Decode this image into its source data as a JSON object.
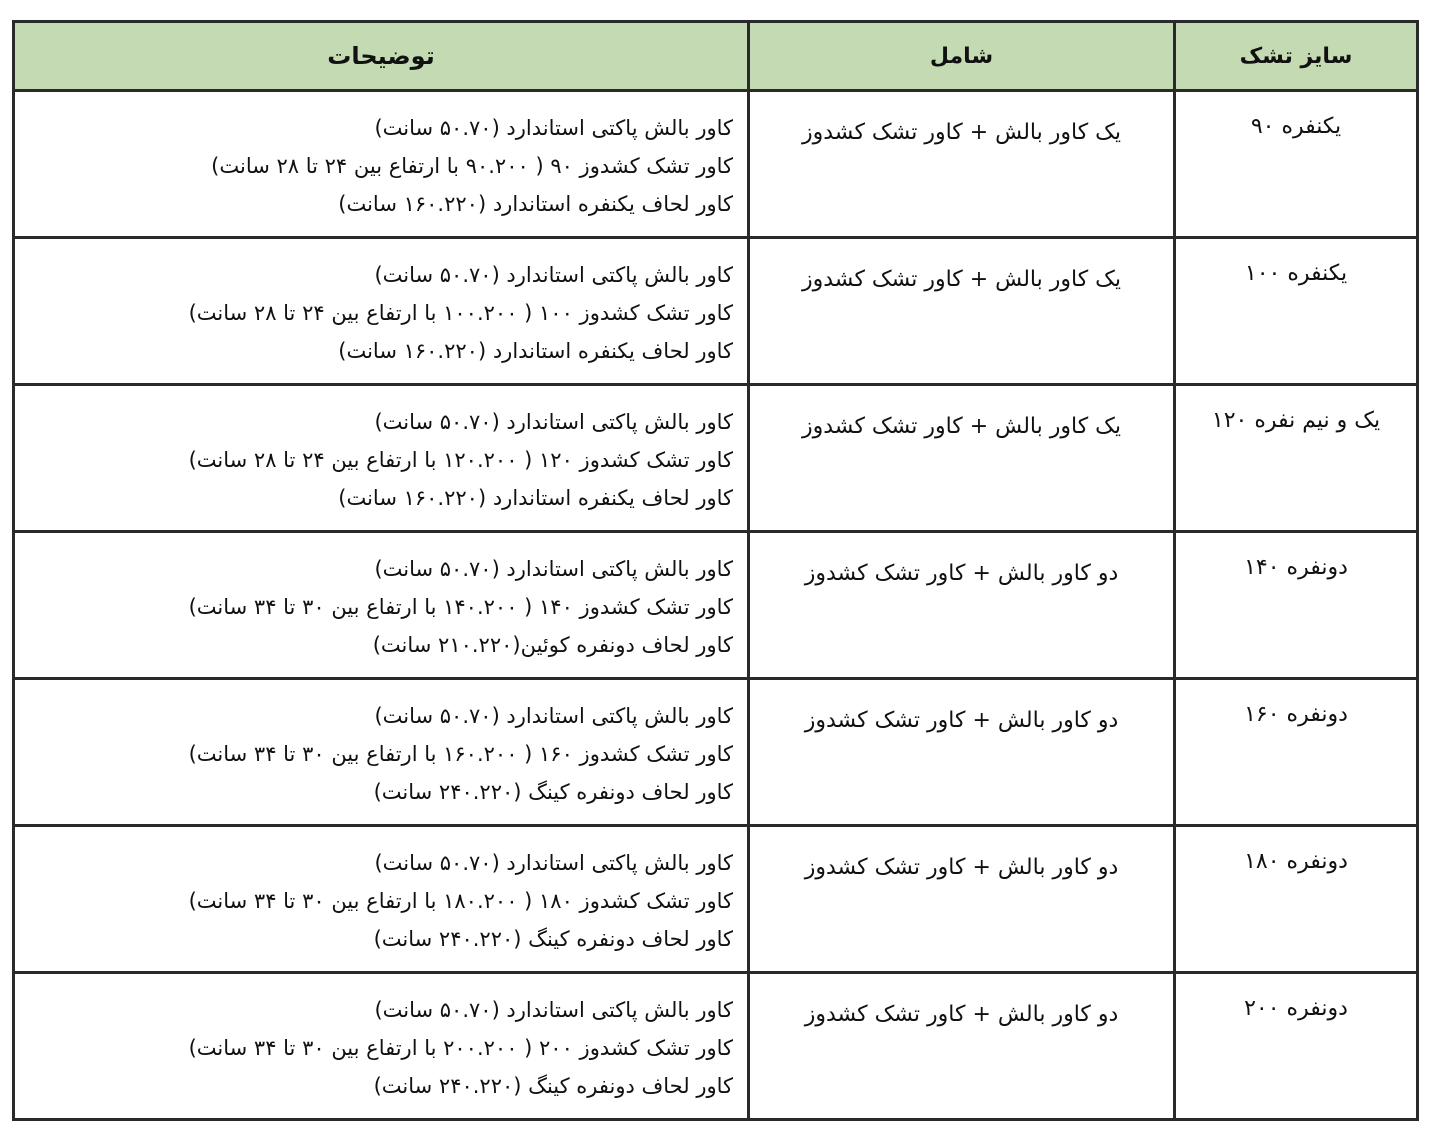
{
  "header": {
    "size": "سایز تشک",
    "includes": "شامل",
    "description": "توضیحات"
  },
  "header_color": "#c4dab3",
  "rows": [
    {
      "size": "یکنفره ۹۰",
      "includes": "یک کاور بالش + کاور تشک کشدوز",
      "description": [
        "کاور بالش پاکتی استاندارد (۵۰.۷۰ سانت)",
        "کاور تشک کشدوز ۹۰ ( ۹۰.۲۰۰ با ارتفاع بین ۲۴ تا ۲۸ سانت)",
        "کاور لحاف یکنفره استاندارد (۱۶۰.۲۲۰ سانت)"
      ]
    },
    {
      "size": "یکنفره ۱۰۰",
      "includes": "یک کاور بالش + کاور تشک کشدوز",
      "description": [
        "کاور بالش پاکتی استاندارد (۵۰.۷۰ سانت)",
        "کاور تشک کشدوز ۱۰۰ ( ۱۰۰.۲۰۰ با ارتفاع بین ۲۴ تا ۲۸ سانت)",
        "کاور لحاف یکنفره استاندارد (۱۶۰.۲۲۰ سانت)"
      ]
    },
    {
      "size": "یک و نیم نفره ۱۲۰",
      "includes": "یک کاور بالش + کاور تشک کشدوز",
      "description": [
        "کاور بالش پاکتی استاندارد (۵۰.۷۰ سانت)",
        "کاور تشک کشدوز ۱۲۰ ( ۱۲۰.۲۰۰ با ارتفاع بین ۲۴ تا ۲۸ سانت)",
        "کاور لحاف یکنفره استاندارد (۱۶۰.۲۲۰ سانت)"
      ]
    },
    {
      "size": "دونفره ۱۴۰",
      "includes": "دو کاور بالش + کاور تشک کشدوز",
      "description": [
        "کاور بالش پاکتی استاندارد (۵۰.۷۰ سانت)",
        "کاور تشک کشدوز ۱۴۰ ( ۱۴۰.۲۰۰ با ارتفاع بین ۳۰ تا ۳۴ سانت)",
        "کاور لحاف دونفره کوئین(۲۱۰.۲۲۰ سانت)"
      ]
    },
    {
      "size": "دونفره ۱۶۰",
      "includes": "دو کاور بالش + کاور تشک کشدوز",
      "description": [
        "کاور بالش پاکتی استاندارد (۵۰.۷۰ سانت)",
        "کاور تشک کشدوز ۱۶۰ ( ۱۶۰.۲۰۰ با ارتفاع بین ۳۰ تا ۳۴ سانت)",
        "کاور لحاف دونفره کینگ (۲۴۰.۲۲۰ سانت)"
      ]
    },
    {
      "size": "دونفره ۱۸۰",
      "includes": "دو کاور بالش + کاور تشک کشدوز",
      "description": [
        "کاور بالش پاکتی استاندارد (۵۰.۷۰ سانت)",
        "کاور تشک کشدوز ۱۸۰ ( ۱۸۰.۲۰۰ با ارتفاع بین ۳۰ تا ۳۴ سانت)",
        "کاور لحاف دونفره کینگ (۲۴۰.۲۲۰ سانت)"
      ]
    },
    {
      "size": "دونفره ۲۰۰",
      "includes": "دو کاور بالش + کاور تشک کشدوز",
      "description": [
        "کاور بالش پاکتی استاندارد (۵۰.۷۰ سانت)",
        "کاور تشک کشدوز ۲۰۰ ( ۲۰۰.۲۰۰ با ارتفاع بین ۳۰ تا ۳۴ سانت)",
        "کاور لحاف دونفره کینگ (۲۴۰.۲۲۰ سانت)"
      ]
    }
  ]
}
